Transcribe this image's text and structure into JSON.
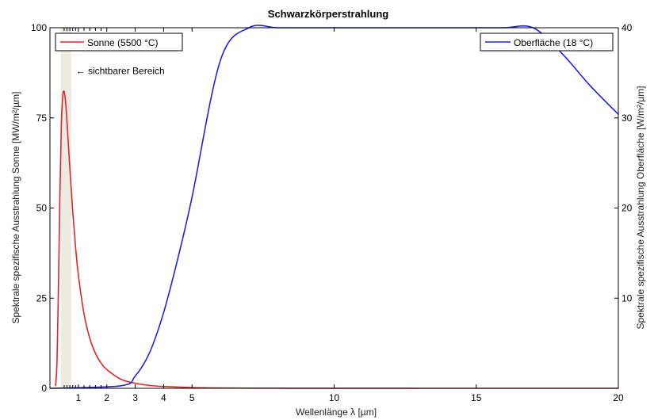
{
  "chart_data": {
    "type": "line",
    "title": "Schwarzkörperstrahlung",
    "xlabel": "Wellenlänge λ [µm]",
    "ylabel_left": "Spektrale spezifische Ausstrahlung Sonne [MW/m²/µm]",
    "ylabel_right": "Spektrale spezifische Ausstrahlung Oberfläche [W/m²/µm]",
    "xlim": [
      0,
      20
    ],
    "ylim_left": [
      0,
      100
    ],
    "ylim_right": [
      0,
      40
    ],
    "x_ticks": [
      1,
      2,
      3,
      4,
      5,
      10,
      15,
      20
    ],
    "x_tick_labels": [
      "1",
      "2",
      "3",
      "4",
      "5",
      "10",
      "15",
      "20"
    ],
    "y_ticks_left": [
      0,
      25,
      50,
      75,
      100
    ],
    "y_tick_labels_left": [
      "0",
      "25",
      "50",
      "75",
      "100"
    ],
    "y_ticks_right": [
      10,
      20,
      30,
      40
    ],
    "y_tick_labels_right": [
      "10",
      "20",
      "30",
      "40"
    ],
    "grid": false,
    "visible_band": {
      "x_range": [
        0.38,
        0.75
      ],
      "color": "#edebe0"
    },
    "annotation": {
      "text": "← sichtbarer Bereich",
      "x": 0.8,
      "y_left": 85
    },
    "series": [
      {
        "name": "Sonne (5500 °C)",
        "axis": "left",
        "color": "#e0262b",
        "x": [
          0.2,
          0.25,
          0.3,
          0.35,
          0.4,
          0.45,
          0.5,
          0.55,
          0.6,
          0.7,
          0.8,
          0.9,
          1.0,
          1.2,
          1.4,
          1.6,
          1.8,
          2.0,
          2.5,
          3.0,
          3.5,
          4.0,
          5.0,
          6.0,
          8.0,
          10.0,
          15.0,
          20.0
        ],
        "values": [
          0.6,
          7.9,
          28.5,
          53.6,
          72.5,
          81.0,
          82.3,
          79.4,
          73.9,
          61.1,
          49.2,
          39.3,
          31.5,
          20.6,
          13.9,
          9.7,
          7.0,
          5.2,
          2.5,
          1.4,
          0.8,
          0.5,
          0.2,
          0.1,
          0.03,
          0.01,
          0.0,
          0.0
        ],
        "legend": "top-left"
      },
      {
        "name": "Oberfläche (18 °C)",
        "axis": "right",
        "color": "#2222dd",
        "x": [
          0,
          2.5,
          3.0,
          3.5,
          4.0,
          4.5,
          5.0,
          6.0,
          7.0,
          8.0,
          9.0,
          10.0,
          11.0,
          12.0,
          13.0,
          14.0,
          15.0,
          16.0,
          17.0,
          18.0,
          19.0,
          20.0
        ],
        "values": [
          0,
          0.07,
          0.34,
          0.98,
          2.1,
          3.6,
          5.3,
          9.1,
          12.9,
          15.7,
          17.1,
          17.4,
          16.9,
          16.0,
          14.9,
          13.7,
          12.5,
          11.3,
          10.3,
          9.3,
          8.4,
          7.6
        ],
        "legend": "top-right"
      }
    ],
    "notes": "Rechte Achse ist so skaliert, dass 40 W/m²/µm der Höhe von 100 MW/m²/µm der linken Achse entspricht; die Oberflächen-Kurve wird dabei visuell überhöht (Skala ×4) dargestellt.",
    "right_axis_display_scale": 4
  }
}
